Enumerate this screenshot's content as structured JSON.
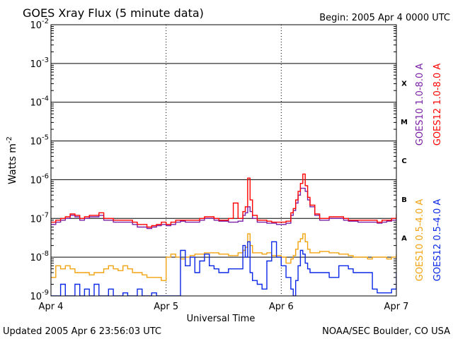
{
  "header": {
    "title": "GOES Xray Flux (5 minute data)",
    "begin": "Begin:  2005 Apr 4 0000 UTC"
  },
  "footer": {
    "updated": "Updated 2005 Apr  6 23:56:03 UTC",
    "credit": "NOAA/SEC Boulder, CO USA"
  },
  "chart_data": {
    "type": "line",
    "title": "GOES Xray Flux (5 minute data)",
    "xlabel": "Universal Time",
    "ylabel": "Watts m",
    "ylabel_superscript": "-2",
    "yscale": "log",
    "ylim": [
      1e-09,
      0.01
    ],
    "xlim": [
      0,
      72
    ],
    "x_unit": "hours since 2005 Apr 4 0000 UTC",
    "y_ticks": [
      {
        "base": "10",
        "exp": "-2",
        "value": 0.01
      },
      {
        "base": "10",
        "exp": "-3",
        "value": 0.001
      },
      {
        "base": "10",
        "exp": "-4",
        "value": 0.0001
      },
      {
        "base": "10",
        "exp": "-5",
        "value": 1e-05
      },
      {
        "base": "10",
        "exp": "-6",
        "value": 1e-06
      },
      {
        "base": "10",
        "exp": "-7",
        "value": 1e-07
      },
      {
        "base": "10",
        "exp": "-8",
        "value": 1e-08
      },
      {
        "base": "10",
        "exp": "-9",
        "value": 1e-09
      }
    ],
    "x_ticks": [
      {
        "label": "Apr 4",
        "value": 0
      },
      {
        "label": "Apr 5",
        "value": 24
      },
      {
        "label": "Apr 6",
        "value": 48
      },
      {
        "label": "Apr 7",
        "value": 72
      }
    ],
    "flare_classes": [
      {
        "label": "X",
        "value": 0.000316
      },
      {
        "label": "M",
        "value": 3.16e-05
      },
      {
        "label": "C",
        "value": 3.16e-06
      },
      {
        "label": "B",
        "value": 3.16e-07
      },
      {
        "label": "A",
        "value": 3.16e-08
      }
    ],
    "grid": true,
    "legend_placement": "right",
    "series": [
      {
        "name": "GOES10 1.0-8.0 A",
        "color": "#7a1fa6",
        "x": [
          0,
          1,
          2,
          3,
          4,
          5,
          6,
          7,
          8,
          9,
          10,
          11,
          12,
          13,
          14,
          15,
          16,
          17,
          18,
          19,
          20,
          21,
          22,
          23,
          24,
          25,
          26,
          27,
          28,
          29,
          30,
          31,
          32,
          33,
          34,
          35,
          36,
          37,
          38,
          39,
          40,
          40.5,
          41,
          41.5,
          42,
          43,
          44,
          45,
          46,
          47,
          48,
          49,
          50,
          50.5,
          51,
          51.5,
          52,
          52.5,
          53,
          53.5,
          54,
          55,
          56,
          57,
          58,
          59,
          60,
          61,
          62,
          63,
          64,
          65,
          66,
          67,
          68,
          69,
          70,
          71,
          72
        ],
        "y": [
          7e-08,
          8e-08,
          9e-08,
          1e-07,
          1.2e-07,
          1.1e-07,
          9e-08,
          1e-07,
          1.1e-07,
          1.1e-07,
          1.2e-07,
          9e-08,
          9e-08,
          8e-08,
          8e-08,
          8e-08,
          8e-08,
          7e-08,
          6e-08,
          6e-08,
          5.5e-08,
          6e-08,
          6.5e-08,
          7e-08,
          6.5e-08,
          7e-08,
          8e-08,
          8.5e-08,
          8e-08,
          8e-08,
          8e-08,
          9e-08,
          1e-07,
          1e-07,
          9e-08,
          8.5e-08,
          8.5e-08,
          8e-08,
          8e-08,
          8.5e-08,
          1.2e-07,
          1.4e-07,
          2e-07,
          1.5e-07,
          1e-07,
          8e-08,
          8e-08,
          7.5e-08,
          7.5e-08,
          7e-08,
          7e-08,
          7.5e-08,
          1.2e-07,
          1.6e-07,
          2.5e-07,
          4e-07,
          6e-07,
          6e-07,
          5e-07,
          3e-07,
          2e-07,
          1.2e-07,
          9e-08,
          9e-08,
          1e-07,
          1e-07,
          1e-07,
          9e-08,
          8.5e-08,
          8.5e-08,
          8e-08,
          8e-08,
          8e-08,
          8e-08,
          7.5e-08,
          8e-08,
          8.5e-08,
          9e-08,
          1e-07
        ]
      },
      {
        "name": "GOES12 1.0-8.0 A",
        "color": "#ff0000",
        "x": [
          0,
          1,
          2,
          3,
          4,
          5,
          6,
          7,
          8,
          9,
          10,
          11,
          12,
          13,
          14,
          15,
          16,
          17,
          18,
          19,
          20,
          21,
          22,
          23,
          24,
          25,
          26,
          27,
          28,
          29,
          30,
          31,
          32,
          33,
          34,
          35,
          36,
          37,
          38,
          39,
          40,
          40.5,
          41,
          41.5,
          42,
          43,
          44,
          45,
          46,
          47,
          48,
          49,
          50,
          50.5,
          51,
          51.5,
          52,
          52.5,
          53,
          53.5,
          54,
          55,
          56,
          57,
          58,
          59,
          60,
          61,
          62,
          63,
          64,
          65,
          66,
          67,
          68,
          69,
          70,
          71,
          72
        ],
        "y": [
          8e-08,
          9e-08,
          1e-07,
          1.1e-07,
          1.3e-07,
          1.2e-07,
          1e-07,
          1.1e-07,
          1.2e-07,
          1.2e-07,
          1.4e-07,
          1e-07,
          1e-07,
          9e-08,
          9e-08,
          9e-08,
          9e-08,
          8e-08,
          7e-08,
          7e-08,
          6e-08,
          6.5e-08,
          7e-08,
          8e-08,
          7e-08,
          8e-08,
          9e-08,
          9e-08,
          9e-08,
          9e-08,
          9e-08,
          1e-07,
          1.1e-07,
          1.1e-07,
          1e-07,
          9e-08,
          9e-08,
          1e-07,
          2.5e-07,
          1e-07,
          1.5e-07,
          2e-07,
          1.1e-06,
          3e-07,
          1.2e-07,
          9e-08,
          9e-08,
          8.5e-08,
          8e-08,
          8e-08,
          8e-08,
          8.5e-08,
          1.4e-07,
          1.8e-07,
          3e-07,
          5e-07,
          8e-07,
          1.4e-06,
          7e-07,
          3.5e-07,
          2.2e-07,
          1.3e-07,
          1e-07,
          1e-07,
          1.1e-07,
          1.1e-07,
          1.1e-07,
          1e-07,
          9e-08,
          9e-08,
          9e-08,
          9e-08,
          9e-08,
          9e-08,
          8e-08,
          9e-08,
          9e-08,
          1e-07,
          1.3e-07
        ]
      },
      {
        "name": "GOES10 0.5-4.0 A",
        "color": "#f2a30f",
        "x": [
          0,
          1,
          2,
          3,
          4,
          5,
          6,
          7,
          8,
          9,
          10,
          11,
          12,
          13,
          14,
          15,
          16,
          17,
          18,
          19,
          20,
          21,
          22,
          23,
          24,
          25,
          26,
          27,
          28,
          29,
          30,
          31,
          32,
          33,
          34,
          35,
          36,
          37,
          38,
          39,
          40,
          40.5,
          41,
          41.5,
          42,
          43,
          44,
          45,
          46,
          47,
          48,
          49,
          50,
          50.5,
          51,
          51.5,
          52,
          52.5,
          53,
          53.5,
          54,
          55,
          56,
          57,
          58,
          59,
          60,
          61,
          62,
          63,
          64,
          65,
          66,
          67,
          68,
          69,
          70,
          71,
          72
        ],
        "y": [
          3e-09,
          6e-09,
          5e-09,
          6e-09,
          5e-09,
          4e-09,
          4e-09,
          4e-09,
          3.5e-09,
          4e-09,
          4e-09,
          5e-09,
          6e-09,
          5e-09,
          4.5e-09,
          6e-09,
          5e-09,
          4e-09,
          4e-09,
          3.5e-09,
          3e-09,
          3e-09,
          3e-09,
          2.5e-09,
          1e-08,
          1.2e-08,
          1e-08,
          9e-09,
          1e-08,
          1.1e-08,
          1.2e-08,
          1.2e-08,
          1.3e-08,
          1.3e-08,
          1.3e-08,
          1.2e-08,
          1.2e-08,
          1.1e-08,
          1.1e-08,
          1.3e-08,
          1.5e-08,
          1.8e-08,
          4e-08,
          2e-08,
          1.3e-08,
          1.3e-08,
          1.2e-08,
          1.3e-08,
          1.1e-08,
          1.1e-08,
          1e-08,
          7e-09,
          9e-09,
          1.1e-08,
          1.6e-08,
          2.5e-08,
          3e-08,
          4e-08,
          2.5e-08,
          1.6e-08,
          1.3e-08,
          1.3e-08,
          1.4e-08,
          1.4e-08,
          1.3e-08,
          1.3e-08,
          1.2e-08,
          1.2e-08,
          1.1e-08,
          1e-08,
          1e-08,
          1e-08,
          9e-09,
          1e-08,
          1e-08,
          1e-08,
          9e-09,
          1e-08,
          1.2e-08
        ]
      },
      {
        "name": "GOES12 0.5-4.0 A",
        "color": "#0a28e6",
        "x": [
          0,
          1,
          2,
          3,
          4,
          5,
          6,
          7,
          8,
          9,
          10,
          11,
          12,
          13,
          14,
          15,
          16,
          17,
          18,
          19,
          20,
          21,
          22,
          23,
          24,
          25,
          26,
          27,
          28,
          29,
          30,
          31,
          32,
          33,
          34,
          35,
          36,
          37,
          38,
          39,
          40,
          40.5,
          41,
          41.5,
          42,
          43,
          44,
          45,
          46,
          47,
          48,
          49,
          50,
          50.5,
          51,
          51.5,
          52,
          52.5,
          53,
          53.5,
          54,
          55,
          56,
          57,
          58,
          59,
          60,
          61,
          62,
          63,
          64,
          65,
          66,
          67,
          68,
          69,
          70,
          71,
          72
        ],
        "y": [
          1e-09,
          1e-09,
          2e-09,
          1e-09,
          1e-09,
          2e-09,
          1e-09,
          1.5e-09,
          1e-09,
          2e-09,
          1e-09,
          1e-09,
          1.5e-09,
          1e-09,
          1e-09,
          1.2e-09,
          1e-09,
          1e-09,
          1.5e-09,
          1e-09,
          1e-09,
          1.2e-09,
          1e-09,
          1e-09,
          1e-09,
          1e-09,
          1e-09,
          1.5e-08,
          6e-09,
          1e-08,
          4e-09,
          8e-09,
          1.2e-08,
          6e-09,
          5e-09,
          4e-09,
          4e-09,
          5e-09,
          5e-09,
          5e-09,
          2e-08,
          1e-08,
          2.5e-08,
          4e-09,
          2.5e-09,
          2e-09,
          1.5e-09,
          8e-09,
          2.5e-08,
          1e-08,
          6e-09,
          3e-09,
          1.5e-09,
          1e-09,
          2.5e-09,
          6e-09,
          1.5e-08,
          1.2e-08,
          7e-09,
          5e-09,
          4e-09,
          4e-09,
          4e-09,
          4e-09,
          3e-09,
          3e-09,
          6e-09,
          6e-09,
          5e-09,
          4e-09,
          4e-09,
          4e-09,
          4e-09,
          1.5e-09,
          1.2e-09,
          1.2e-09,
          1.2e-09,
          1.5e-09,
          4e-09
        ]
      }
    ]
  }
}
